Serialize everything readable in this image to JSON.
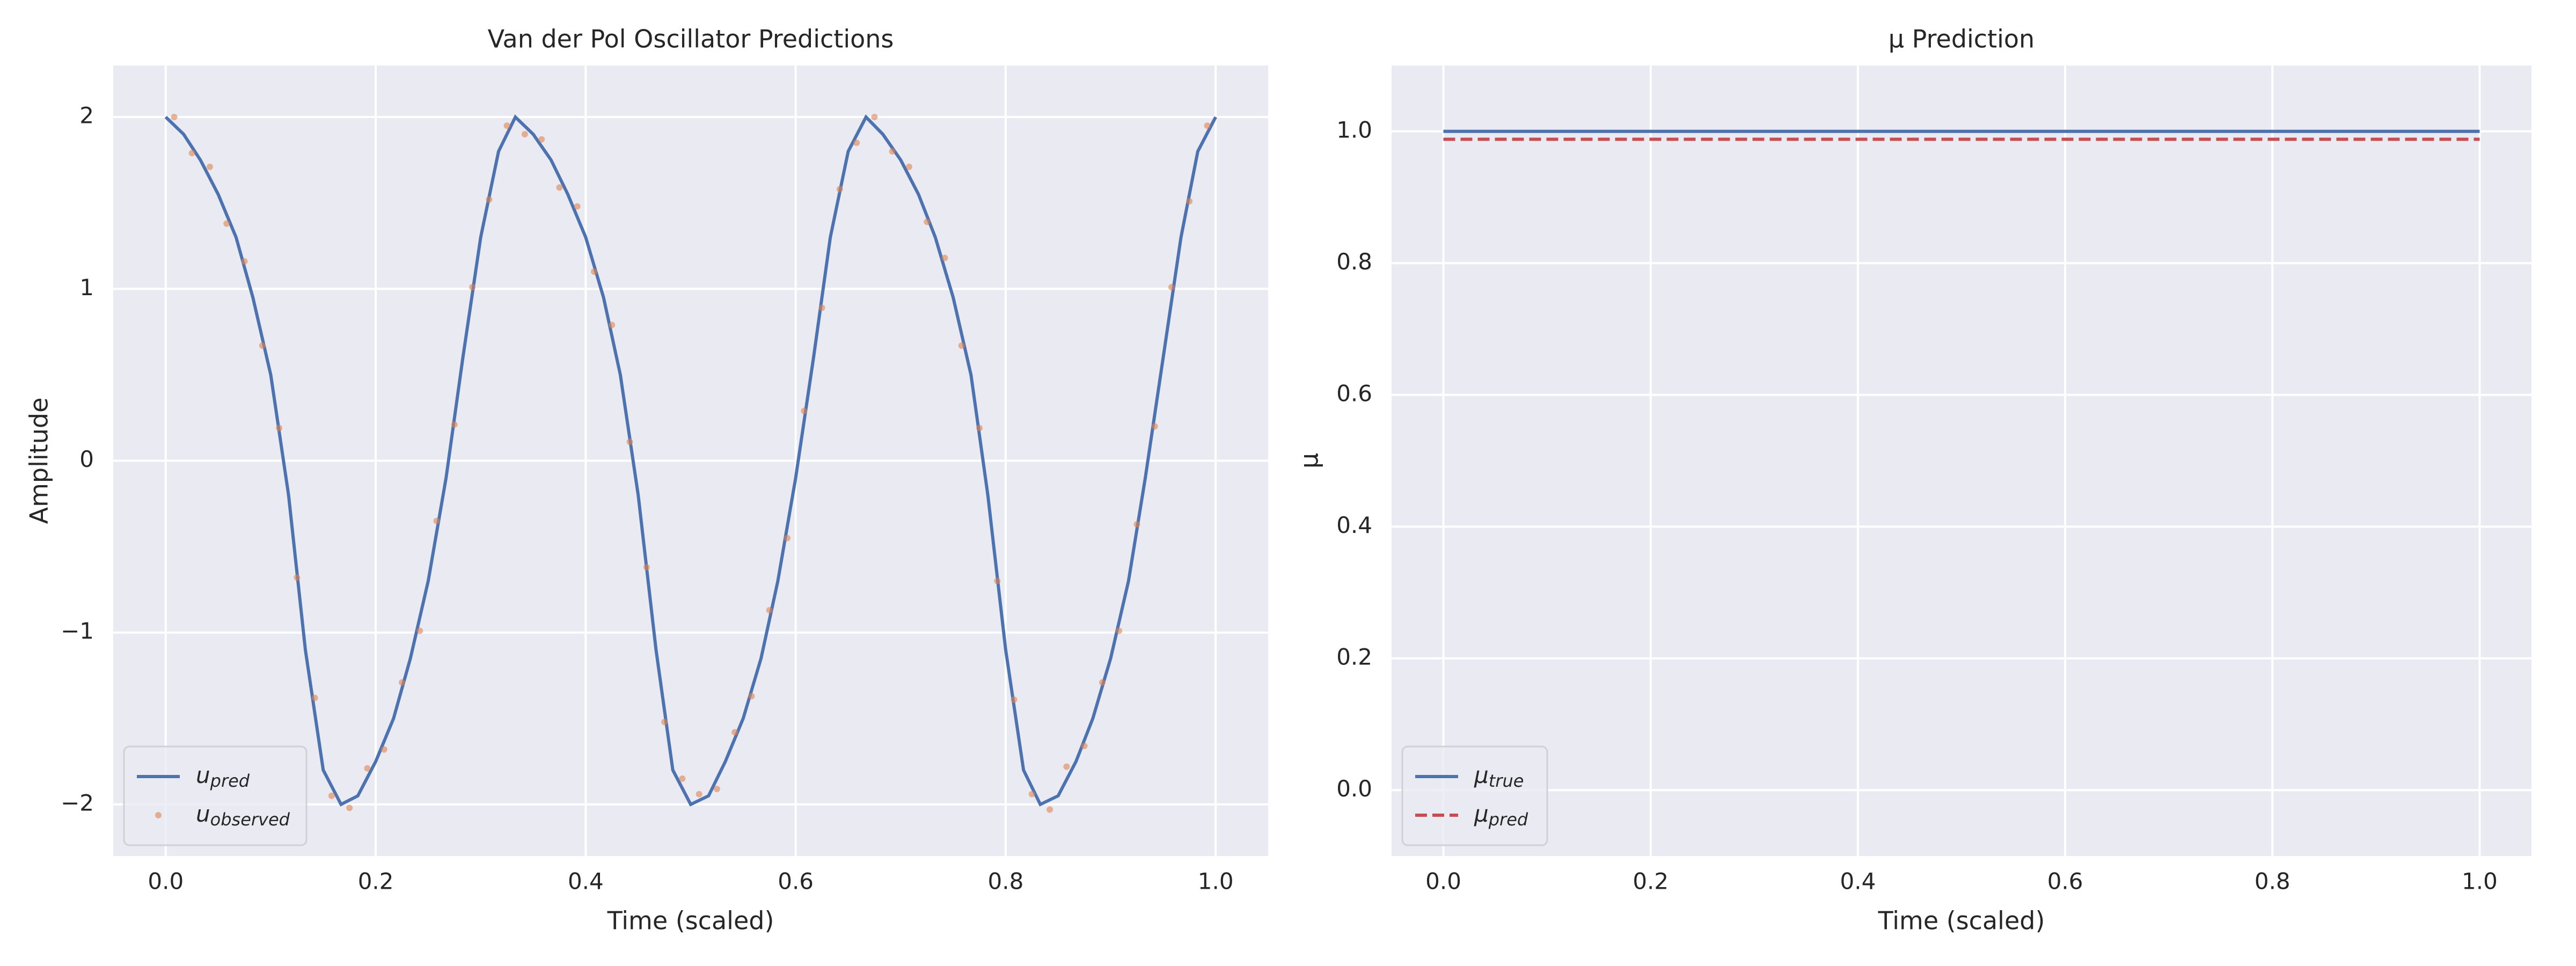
{
  "chart_data": [
    {
      "type": "line",
      "title": "Van der Pol Oscillator Predictions",
      "xlabel": "Time (scaled)",
      "ylabel": "Amplitude",
      "xlim": [
        -0.05,
        1.05
      ],
      "ylim": [
        -2.3,
        2.3
      ],
      "xticks": [
        {
          "value": 0,
          "label": "0.0"
        },
        0.2,
        0.4,
        0.6,
        0.8,
        {
          "value": 1,
          "label": "1.0"
        }
      ],
      "yticks": [
        {
          "value": -2,
          "label": "−2"
        },
        {
          "value": -1,
          "label": "−1"
        },
        0,
        1,
        2
      ],
      "grid": true,
      "legend": "lower left",
      "series": [
        {
          "name": "u_pred",
          "kind": "line",
          "color": "#4c72b0",
          "x": [
            0,
            0.017,
            0.033,
            0.05,
            0.067,
            0.083,
            0.1,
            0.117,
            0.133,
            0.15,
            0.167,
            0.183,
            0.2,
            0.217,
            0.233,
            0.25,
            0.267,
            0.283,
            0.3,
            0.317,
            0.333,
            0.35,
            0.367,
            0.383,
            0.4,
            0.417,
            0.433,
            0.45,
            0.467,
            0.483,
            0.5,
            0.517,
            0.533,
            0.55,
            0.567,
            0.583,
            0.6,
            0.617,
            0.633,
            0.65,
            0.667,
            0.683,
            0.7,
            0.717,
            0.733,
            0.75,
            0.767,
            0.783,
            0.8,
            0.817,
            0.833,
            0.85,
            0.867,
            0.883,
            0.9,
            0.917,
            0.933,
            0.95,
            0.967,
            0.983,
            1.0
          ],
          "values": [
            2.0,
            1.9,
            1.75,
            1.55,
            1.3,
            0.95,
            0.5,
            -0.2,
            -1.1,
            -1.8,
            -2.0,
            -1.95,
            -1.75,
            -1.5,
            -1.15,
            -0.7,
            -0.1,
            0.6,
            1.3,
            1.8,
            2.0,
            1.9,
            1.75,
            1.55,
            1.3,
            0.95,
            0.5,
            -0.2,
            -1.1,
            -1.8,
            -2.0,
            -1.95,
            -1.75,
            -1.5,
            -1.15,
            -0.7,
            -0.1,
            0.6,
            1.3,
            1.8,
            2.0,
            1.9,
            1.75,
            1.55,
            1.3,
            0.95,
            0.5,
            -0.2,
            -1.1,
            -1.8,
            -2.0,
            -1.95,
            -1.75,
            -1.5,
            -1.15,
            -0.7,
            -0.1,
            0.6,
            1.3,
            1.8,
            2.0
          ]
        },
        {
          "name": "u_observed",
          "kind": "scatter",
          "color": "#dd8452",
          "x": [
            0.008,
            0.025,
            0.042,
            0.058,
            0.075,
            0.092,
            0.108,
            0.125,
            0.142,
            0.158,
            0.175,
            0.192,
            0.208,
            0.225,
            0.242,
            0.258,
            0.275,
            0.292,
            0.308,
            0.325,
            0.342,
            0.358,
            0.375,
            0.392,
            0.408,
            0.425,
            0.442,
            0.458,
            0.475,
            0.492,
            0.508,
            0.525,
            0.542,
            0.558,
            0.575,
            0.592,
            0.608,
            0.625,
            0.642,
            0.658,
            0.675,
            0.692,
            0.708,
            0.725,
            0.742,
            0.758,
            0.775,
            0.792,
            0.808,
            0.825,
            0.842,
            0.858,
            0.875,
            0.892,
            0.908,
            0.925,
            0.942,
            0.958,
            0.975,
            0.992
          ],
          "values": [
            2.0,
            1.79,
            1.71,
            1.38,
            1.16,
            0.67,
            0.19,
            -0.68,
            -1.38,
            -1.95,
            -2.02,
            -1.79,
            -1.68,
            -1.29,
            -0.99,
            -0.35,
            0.21,
            1.01,
            1.52,
            1.95,
            1.9,
            1.87,
            1.59,
            1.48,
            1.1,
            0.79,
            0.11,
            -0.62,
            -1.52,
            -1.85,
            -1.94,
            -1.91,
            -1.58,
            -1.37,
            -0.87,
            -0.45,
            0.29,
            0.89,
            1.58,
            1.85,
            2.0,
            1.8,
            1.71,
            1.39,
            1.18,
            0.67,
            0.19,
            -0.7,
            -1.39,
            -1.94,
            -2.03,
            -1.78,
            -1.66,
            -1.29,
            -0.99,
            -0.37,
            0.2,
            1.01,
            1.51,
            1.95
          ]
        }
      ]
    },
    {
      "type": "line",
      "title": "μ Prediction",
      "xlabel": "Time (scaled)",
      "ylabel": "μ",
      "xlim": [
        -0.05,
        1.05
      ],
      "ylim": [
        -0.1,
        1.1
      ],
      "xticks": [
        {
          "value": 0,
          "label": "0.0"
        },
        0.2,
        0.4,
        0.6,
        0.8,
        {
          "value": 1,
          "label": "1.0"
        }
      ],
      "yticks": [
        {
          "value": 0,
          "label": "0.0"
        },
        0.2,
        0.4,
        0.6,
        0.8,
        {
          "value": 1,
          "label": "1.0"
        }
      ],
      "grid": true,
      "legend": "lower left",
      "series": [
        {
          "name": "μ_true",
          "kind": "line",
          "color": "#4c72b0",
          "x": [
            0,
            1
          ],
          "values": [
            1.0,
            1.0
          ]
        },
        {
          "name": "μ_pred",
          "kind": "line",
          "linestyle": "dashed",
          "color": "#c44e52",
          "x": [
            0,
            1
          ],
          "values": [
            0.988,
            0.988
          ]
        }
      ]
    }
  ]
}
